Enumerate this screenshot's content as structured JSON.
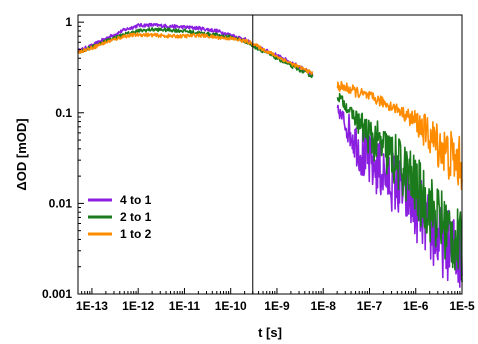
{
  "chart_data": {
    "type": "line",
    "xlabel": "t [s]",
    "ylabel": "ΔOD [mOD]",
    "x_scale": "log",
    "y_scale": "log",
    "xlim": [
      5e-14,
      1e-05
    ],
    "ylim": [
      0.001,
      1.2
    ],
    "x_ticks": [
      {
        "value": 1e-13,
        "label": "1E-13"
      },
      {
        "value": 1e-12,
        "label": "1E-12"
      },
      {
        "value": 1e-11,
        "label": "1E-11"
      },
      {
        "value": 1e-10,
        "label": "1E-10"
      },
      {
        "value": 1e-09,
        "label": "1E-9"
      },
      {
        "value": 1e-08,
        "label": "1E-8"
      },
      {
        "value": 1e-07,
        "label": "1E-7"
      },
      {
        "value": 1e-06,
        "label": "1E-6"
      },
      {
        "value": 1e-05,
        "label": "1E-5"
      }
    ],
    "y_ticks": [
      {
        "value": 0.001,
        "label": "0.001"
      },
      {
        "value": 0.01,
        "label": "0.01"
      },
      {
        "value": 0.1,
        "label": "0.1"
      },
      {
        "value": 1,
        "label": "1"
      }
    ],
    "vertical_line_x": 3e-10,
    "grid": false,
    "legend": {
      "placement": "bottom-left"
    },
    "series": [
      {
        "name": "4 to 1",
        "color": "#8B1FE0",
        "x": [
          5e-14,
          1e-13,
          2e-13,
          5e-13,
          1e-12,
          2e-12,
          5e-12,
          1e-11,
          2e-11,
          5e-11,
          1e-10,
          2e-10,
          3e-10,
          5e-10,
          1e-09,
          2e-09,
          4e-09,
          6e-09,
          2e-08,
          4e-08,
          7e-08,
          1e-07,
          2e-07,
          4e-07,
          7e-07,
          1e-06,
          1.5e-06,
          2e-06,
          3e-06,
          5e-06,
          7e-06,
          1e-05
        ],
        "y": [
          0.48,
          0.55,
          0.66,
          0.82,
          0.92,
          0.93,
          0.9,
          0.88,
          0.86,
          0.8,
          0.72,
          0.65,
          0.56,
          0.5,
          0.43,
          0.36,
          0.3,
          0.26,
          0.11,
          0.06,
          0.035,
          0.028,
          0.022,
          0.016,
          0.012,
          0.009,
          0.007,
          0.005,
          0.004,
          0.0035,
          0.003,
          0.0025
        ]
      },
      {
        "name": "2 to 1",
        "color": "#1B7A1B",
        "x": [
          5e-14,
          1e-13,
          2e-13,
          5e-13,
          1e-12,
          2e-12,
          5e-12,
          1e-11,
          2e-11,
          5e-11,
          1e-10,
          2e-10,
          3e-10,
          5e-10,
          1e-09,
          2e-09,
          4e-09,
          6e-09,
          2e-08,
          4e-08,
          7e-08,
          1e-07,
          2e-07,
          4e-07,
          7e-07,
          1e-06,
          1.5e-06,
          2e-06,
          3e-06,
          5e-06,
          7e-06,
          1e-05
        ],
        "y": [
          0.47,
          0.53,
          0.62,
          0.73,
          0.8,
          0.83,
          0.82,
          0.8,
          0.76,
          0.72,
          0.68,
          0.62,
          0.55,
          0.48,
          0.4,
          0.33,
          0.28,
          0.25,
          0.16,
          0.1,
          0.07,
          0.055,
          0.04,
          0.028,
          0.02,
          0.015,
          0.011,
          0.009,
          0.007,
          0.005,
          0.004,
          0.003
        ]
      },
      {
        "name": "1 to 2",
        "color": "#FF8C00",
        "x": [
          5e-14,
          1e-13,
          2e-13,
          5e-13,
          1e-12,
          2e-12,
          5e-12,
          1e-11,
          2e-11,
          5e-11,
          1e-10,
          2e-10,
          3e-10,
          5e-10,
          1e-09,
          2e-09,
          4e-09,
          6e-09,
          2e-08,
          4e-08,
          7e-08,
          1e-07,
          2e-07,
          4e-07,
          7e-07,
          1e-06,
          1.5e-06,
          2e-06,
          3e-06,
          5e-06,
          7e-06,
          1e-05
        ],
        "y": [
          0.47,
          0.52,
          0.6,
          0.7,
          0.73,
          0.72,
          0.7,
          0.7,
          0.72,
          0.68,
          0.66,
          0.62,
          0.58,
          0.5,
          0.42,
          0.35,
          0.3,
          0.27,
          0.2,
          0.18,
          0.16,
          0.15,
          0.13,
          0.11,
          0.09,
          0.08,
          0.065,
          0.055,
          0.045,
          0.035,
          0.03,
          0.026
        ]
      }
    ]
  }
}
